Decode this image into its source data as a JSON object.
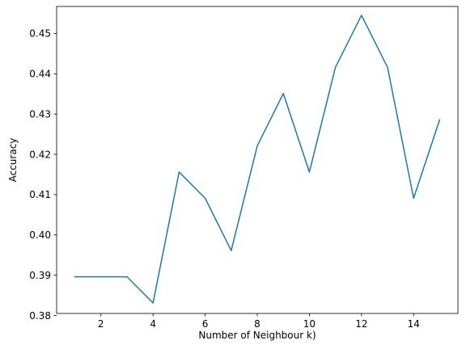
{
  "chart_data": {
    "type": "line",
    "title": "",
    "xlabel": "Number of Neighbour k)",
    "ylabel": "Accuracy",
    "xlim": [
      0.3,
      15.7
    ],
    "ylim": [
      0.3805,
      0.4567
    ],
    "x_ticks": [
      2,
      4,
      6,
      8,
      10,
      12,
      14
    ],
    "x_tick_labels": [
      "2",
      "4",
      "6",
      "8",
      "10",
      "12",
      "14"
    ],
    "y_ticks": [
      0.38,
      0.39,
      0.4,
      0.41,
      0.42,
      0.43,
      0.44,
      0.45
    ],
    "y_tick_labels": [
      "0.38",
      "0.39",
      "0.40",
      "0.41",
      "0.42",
      "0.43",
      "0.44",
      "0.45"
    ],
    "grid": false,
    "legend": "none",
    "series": [
      {
        "color": "#1f77b4",
        "x": [
          1,
          2,
          3,
          4,
          5,
          6,
          7,
          8,
          9,
          10,
          11,
          12,
          13,
          14,
          15
        ],
        "y": [
          0.3896,
          0.3896,
          0.3896,
          0.3831,
          0.4156,
          0.4091,
          0.3961,
          0.4221,
          0.4351,
          0.4156,
          0.4416,
          0.4545,
          0.4416,
          0.4091,
          0.4286
        ]
      }
    ]
  }
}
